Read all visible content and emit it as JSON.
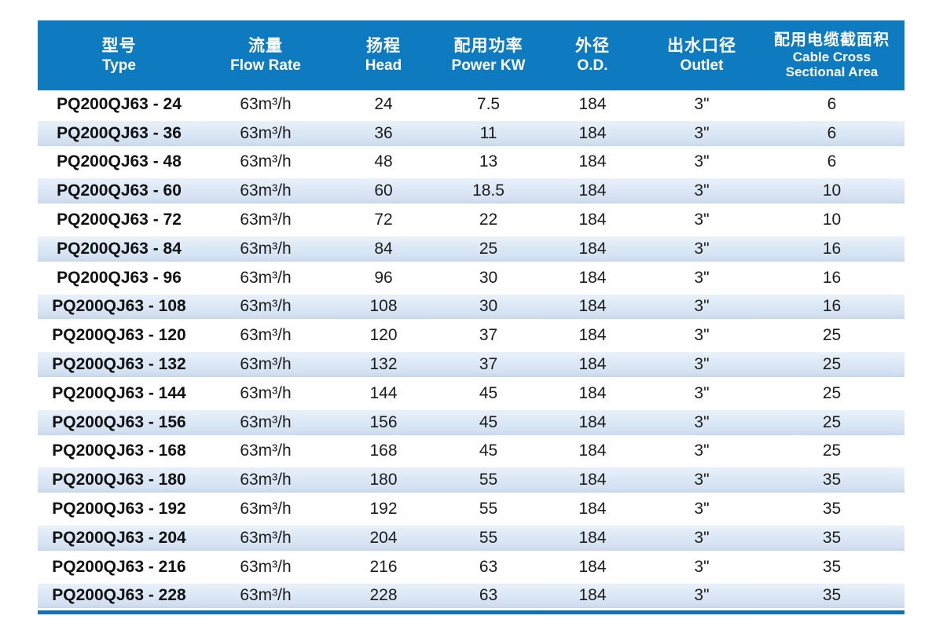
{
  "colors": {
    "header_bg": "#0e7bc0",
    "header_text": "#ffffff",
    "stripe_bg": "#dbe7f5",
    "body_text": "#1c1c1c",
    "bottom_bar": "#0d76bf"
  },
  "table": {
    "columns": [
      {
        "key": "type",
        "zh": "型号",
        "en_lines": [
          "Type"
        ]
      },
      {
        "key": "flow",
        "zh": "流量",
        "en_lines": [
          "Flow Rate"
        ]
      },
      {
        "key": "head",
        "zh": "扬程",
        "en_lines": [
          "Head"
        ]
      },
      {
        "key": "power",
        "zh": "配用功率",
        "en_lines": [
          "Power KW"
        ]
      },
      {
        "key": "od",
        "zh": "外径",
        "en_lines": [
          "O.D."
        ]
      },
      {
        "key": "outlet",
        "zh": "出水口径",
        "en_lines": [
          "Outlet"
        ]
      },
      {
        "key": "cable",
        "zh": "配用电缆截面积",
        "en_lines": [
          "Cable Cross",
          "Sectional Area"
        ]
      }
    ],
    "rows": [
      [
        "PQ200QJ63 - 24",
        "63m³/h",
        "24",
        "7.5",
        "184",
        "3\"",
        "6"
      ],
      [
        "PQ200QJ63 - 36",
        "63m³/h",
        "36",
        "11",
        "184",
        "3\"",
        "6"
      ],
      [
        "PQ200QJ63 - 48",
        "63m³/h",
        "48",
        "13",
        "184",
        "3\"",
        "6"
      ],
      [
        "PQ200QJ63 - 60",
        "63m³/h",
        "60",
        "18.5",
        "184",
        "3\"",
        "10"
      ],
      [
        "PQ200QJ63 - 72",
        "63m³/h",
        "72",
        "22",
        "184",
        "3\"",
        "10"
      ],
      [
        "PQ200QJ63 - 84",
        "63m³/h",
        "84",
        "25",
        "184",
        "3\"",
        "16"
      ],
      [
        "PQ200QJ63 - 96",
        "63m³/h",
        "96",
        "30",
        "184",
        "3\"",
        "16"
      ],
      [
        "PQ200QJ63 - 108",
        "63m³/h",
        "108",
        "30",
        "184",
        "3\"",
        "16"
      ],
      [
        "PQ200QJ63 - 120",
        "63m³/h",
        "120",
        "37",
        "184",
        "3\"",
        "25"
      ],
      [
        "PQ200QJ63 - 132",
        "63m³/h",
        "132",
        "37",
        "184",
        "3\"",
        "25"
      ],
      [
        "PQ200QJ63 - 144",
        "63m³/h",
        "144",
        "45",
        "184",
        "3\"",
        "25"
      ],
      [
        "PQ200QJ63 - 156",
        "63m³/h",
        "156",
        "45",
        "184",
        "3\"",
        "25"
      ],
      [
        "PQ200QJ63 - 168",
        "63m³/h",
        "168",
        "45",
        "184",
        "3\"",
        "25"
      ],
      [
        "PQ200QJ63 - 180",
        "63m³/h",
        "180",
        "55",
        "184",
        "3\"",
        "35"
      ],
      [
        "PQ200QJ63 - 192",
        "63m³/h",
        "192",
        "55",
        "184",
        "3\"",
        "35"
      ],
      [
        "PQ200QJ63 - 204",
        "63m³/h",
        "204",
        "55",
        "184",
        "3\"",
        "35"
      ],
      [
        "PQ200QJ63 - 216",
        "63m³/h",
        "216",
        "63",
        "184",
        "3\"",
        "35"
      ],
      [
        "PQ200QJ63 - 228",
        "63m³/h",
        "228",
        "63",
        "184",
        "3\"",
        "35"
      ]
    ]
  }
}
